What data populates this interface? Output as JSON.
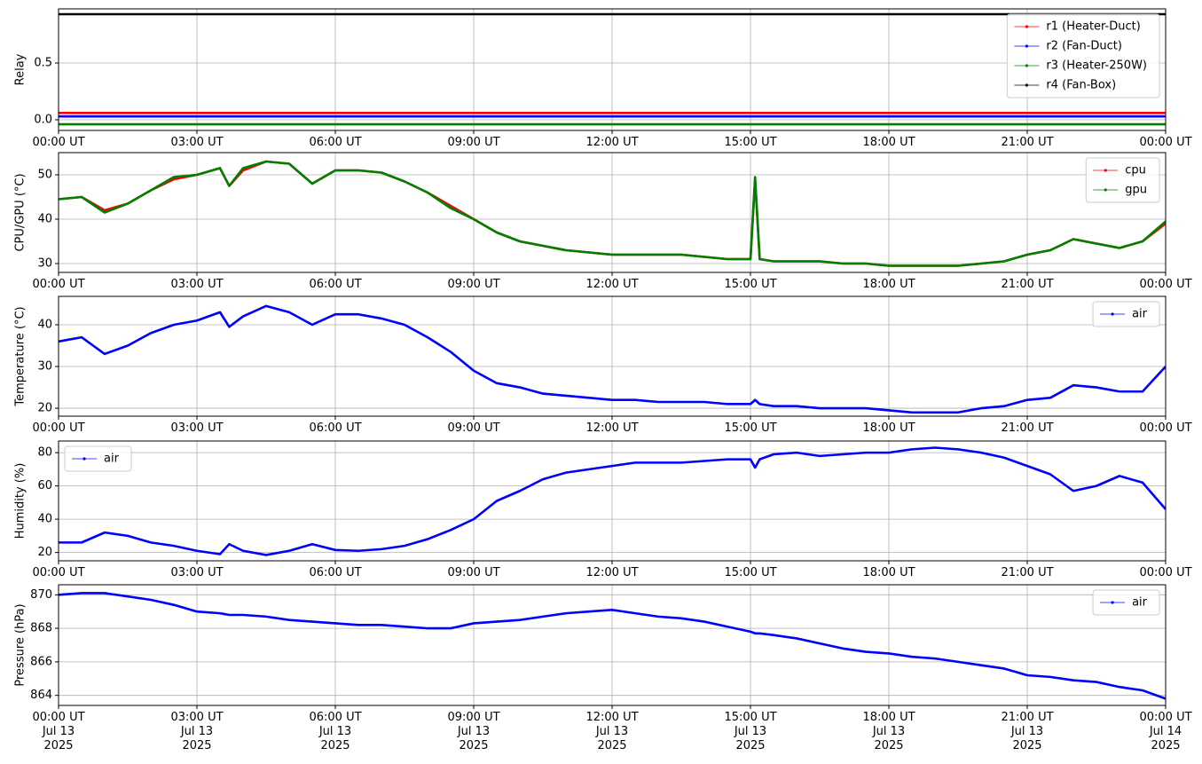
{
  "chart_data": [
    {
      "type": "line",
      "ylabel": "Relay",
      "grid": true,
      "legend": "upper right",
      "xlim": [
        0,
        24
      ],
      "ylim": [
        -0.094,
        0.977
      ],
      "xticks": [
        {
          "value": 0,
          "label": "00:00 UT"
        },
        {
          "value": 3,
          "label": "03:00 UT"
        },
        {
          "value": 6,
          "label": "06:00 UT"
        },
        {
          "value": 9,
          "label": "09:00 UT"
        },
        {
          "value": 12,
          "label": "12:00 UT"
        },
        {
          "value": 15,
          "label": "15:00 UT"
        },
        {
          "value": 18,
          "label": "18:00 UT"
        },
        {
          "value": 21,
          "label": "21:00 UT"
        },
        {
          "value": 24,
          "label": "00:00 UT"
        }
      ],
      "yticks": [
        {
          "value": 0,
          "label": "0.0"
        },
        0.5
      ],
      "x": [
        0,
        24
      ],
      "series": [
        {
          "name": "r1 (Heater-Duct)",
          "color": "#ff0000",
          "values": [
            0.06,
            0.06
          ]
        },
        {
          "name": "r2 (Fan-Duct)",
          "color": "#0000ff",
          "values": [
            0.03,
            0.03
          ]
        },
        {
          "name": "r3 (Heater-250W)",
          "color": "#008000",
          "values": [
            -0.04,
            -0.04
          ]
        },
        {
          "name": "r4 (Fan-Box)",
          "color": "#000000",
          "values": [
            0.93,
            0.93
          ]
        }
      ]
    },
    {
      "type": "line",
      "ylabel": "CPU/GPU (°C)",
      "grid": true,
      "legend": "upper right",
      "xlim": [
        0,
        24
      ],
      "ylim": [
        28,
        55
      ],
      "xticks": [
        {
          "value": 0,
          "label": "00:00 UT"
        },
        {
          "value": 3,
          "label": "03:00 UT"
        },
        {
          "value": 6,
          "label": "06:00 UT"
        },
        {
          "value": 9,
          "label": "09:00 UT"
        },
        {
          "value": 12,
          "label": "12:00 UT"
        },
        {
          "value": 15,
          "label": "15:00 UT"
        },
        {
          "value": 18,
          "label": "18:00 UT"
        },
        {
          "value": 21,
          "label": "21:00 UT"
        },
        {
          "value": 24,
          "label": "00:00 UT"
        }
      ],
      "yticks": [
        30,
        40,
        50
      ],
      "x": [
        0,
        0.5,
        1,
        1.5,
        2,
        2.5,
        3,
        3.5,
        3.7,
        4,
        4.5,
        5,
        5.5,
        6,
        6.5,
        7,
        7.5,
        8,
        8.5,
        9,
        9.5,
        10,
        10.5,
        11,
        11.5,
        12,
        12.5,
        13,
        13.5,
        14,
        14.5,
        15,
        15.1,
        15.2,
        15.5,
        16,
        16.5,
        17,
        17.5,
        18,
        18.5,
        19,
        19.5,
        20,
        20.5,
        21,
        21.5,
        22,
        22.5,
        23,
        23.5,
        24
      ],
      "series": [
        {
          "name": "cpu",
          "color": "#ff0000",
          "values": [
            44.5,
            45,
            42,
            43.5,
            46.5,
            49,
            50,
            51.5,
            47.5,
            51,
            53,
            52.5,
            48,
            51,
            51,
            50.5,
            48.5,
            46,
            43,
            40,
            37,
            35,
            34,
            33,
            32.5,
            32,
            32,
            32,
            32,
            31.5,
            31,
            31,
            49,
            31,
            30.5,
            30.5,
            30.5,
            30,
            30,
            29.5,
            29.5,
            29.5,
            29.5,
            30,
            30.5,
            32,
            33,
            35.5,
            34.5,
            33.5,
            35,
            39
          ]
        },
        {
          "name": "gpu",
          "color": "#008000",
          "values": [
            44.5,
            45,
            41.5,
            43.5,
            46.5,
            49.5,
            50,
            51.5,
            47.5,
            51.5,
            53,
            52.5,
            48,
            51,
            51,
            50.5,
            48.5,
            46,
            42.5,
            40,
            37,
            35,
            34,
            33,
            32.5,
            32,
            32,
            32,
            32,
            31.5,
            31,
            31,
            49.5,
            31,
            30.5,
            30.5,
            30.5,
            30,
            30,
            29.5,
            29.5,
            29.5,
            29.5,
            30,
            30.5,
            32,
            33,
            35.5,
            34.5,
            33.5,
            35,
            39.5
          ]
        }
      ]
    },
    {
      "type": "line",
      "ylabel": "Temperature (°C)",
      "grid": true,
      "legend": "upper right",
      "xlim": [
        0,
        24
      ],
      "ylim": [
        18.1,
        46.8
      ],
      "xticks": [
        {
          "value": 0,
          "label": "00:00 UT"
        },
        {
          "value": 3,
          "label": "03:00 UT"
        },
        {
          "value": 6,
          "label": "06:00 UT"
        },
        {
          "value": 9,
          "label": "09:00 UT"
        },
        {
          "value": 12,
          "label": "12:00 UT"
        },
        {
          "value": 15,
          "label": "15:00 UT"
        },
        {
          "value": 18,
          "label": "18:00 UT"
        },
        {
          "value": 21,
          "label": "21:00 UT"
        },
        {
          "value": 24,
          "label": "00:00 UT"
        }
      ],
      "yticks": [
        20,
        30,
        40
      ],
      "x": [
        0,
        0.5,
        1,
        1.5,
        2,
        2.5,
        3,
        3.5,
        3.7,
        4,
        4.5,
        5,
        5.5,
        6,
        6.5,
        7,
        7.5,
        8,
        8.5,
        9,
        9.5,
        10,
        10.5,
        11,
        11.5,
        12,
        12.5,
        13,
        13.5,
        14,
        14.5,
        15,
        15.1,
        15.2,
        15.5,
        16,
        16.5,
        17,
        17.5,
        18,
        18.5,
        19,
        19.5,
        20,
        20.5,
        21,
        21.5,
        22,
        22.5,
        23,
        23.5,
        24
      ],
      "series": [
        {
          "name": "air",
          "color": "#0000ff",
          "values": [
            36,
            37,
            33,
            35,
            38,
            40,
            41,
            43,
            39.5,
            42,
            44.5,
            43,
            40,
            42.5,
            42.5,
            41.5,
            40,
            37,
            33.5,
            29,
            26,
            25,
            23.5,
            23,
            22.5,
            22,
            22,
            21.5,
            21.5,
            21.5,
            21,
            21,
            22,
            21,
            20.5,
            20.5,
            20,
            20,
            20,
            19.5,
            19,
            19,
            19,
            20,
            20.5,
            22,
            22.5,
            25.5,
            25,
            24,
            24,
            30
          ]
        }
      ]
    },
    {
      "type": "line",
      "ylabel": "Humidity (%)",
      "grid": true,
      "legend": "upper left",
      "xlim": [
        0,
        24
      ],
      "ylim": [
        15,
        87
      ],
      "xticks": [
        {
          "value": 0,
          "label": "00:00 UT"
        },
        {
          "value": 3,
          "label": "03:00 UT"
        },
        {
          "value": 6,
          "label": "06:00 UT"
        },
        {
          "value": 9,
          "label": "09:00 UT"
        },
        {
          "value": 12,
          "label": "12:00 UT"
        },
        {
          "value": 15,
          "label": "15:00 UT"
        },
        {
          "value": 18,
          "label": "18:00 UT"
        },
        {
          "value": 21,
          "label": "21:00 UT"
        },
        {
          "value": 24,
          "label": "00:00 UT"
        }
      ],
      "yticks": [
        20,
        40,
        60,
        80
      ],
      "x": [
        0,
        0.5,
        1,
        1.5,
        2,
        2.5,
        3,
        3.5,
        3.7,
        4,
        4.5,
        5,
        5.5,
        6,
        6.5,
        7,
        7.5,
        8,
        8.5,
        9,
        9.5,
        10,
        10.5,
        11,
        11.5,
        12,
        12.5,
        13,
        13.5,
        14,
        14.5,
        15,
        15.1,
        15.2,
        15.5,
        16,
        16.5,
        17,
        17.5,
        18,
        18.5,
        19,
        19.5,
        20,
        20.5,
        21,
        21.5,
        22,
        22.5,
        23,
        23.5,
        24
      ],
      "series": [
        {
          "name": "air",
          "color": "#0000ff",
          "values": [
            26,
            26,
            32,
            30,
            26,
            24,
            21,
            19,
            25,
            21,
            18.5,
            21,
            25,
            21.5,
            21,
            22,
            24,
            28,
            33.5,
            40,
            51,
            57,
            64,
            68,
            70,
            72,
            74,
            74,
            74,
            75,
            76,
            76,
            71,
            76,
            79,
            80,
            78,
            79,
            80,
            80,
            82,
            83,
            82,
            80,
            77,
            72,
            67,
            57,
            60,
            66,
            62,
            46
          ]
        }
      ]
    },
    {
      "type": "line",
      "ylabel": "Pressure (hPa)",
      "grid": true,
      "legend": "upper right",
      "xlim": [
        0,
        24
      ],
      "ylim": [
        863.4,
        870.6
      ],
      "xticks": [
        {
          "value": 0,
          "label": "00:00 UT\nJul 13\n2025"
        },
        {
          "value": 3,
          "label": "03:00 UT\nJul 13\n2025"
        },
        {
          "value": 6,
          "label": "06:00 UT\nJul 13\n2025"
        },
        {
          "value": 9,
          "label": "09:00 UT\nJul 13\n2025"
        },
        {
          "value": 12,
          "label": "12:00 UT\nJul 13\n2025"
        },
        {
          "value": 15,
          "label": "15:00 UT\nJul 13\n2025"
        },
        {
          "value": 18,
          "label": "18:00 UT\nJul 13\n2025"
        },
        {
          "value": 21,
          "label": "21:00 UT\nJul 13\n2025"
        },
        {
          "value": 24,
          "label": "00:00 UT\nJul 14\n2025"
        }
      ],
      "yticks": [
        864,
        866,
        868,
        870
      ],
      "x": [
        0,
        0.5,
        1,
        1.5,
        2,
        2.5,
        3,
        3.5,
        3.7,
        4,
        4.5,
        5,
        5.5,
        6,
        6.5,
        7,
        7.5,
        8,
        8.5,
        9,
        9.5,
        10,
        10.5,
        11,
        11.5,
        12,
        12.5,
        13,
        13.5,
        14,
        14.5,
        15,
        15.1,
        15.2,
        15.5,
        16,
        16.5,
        17,
        17.5,
        18,
        18.5,
        19,
        19.5,
        20,
        20.5,
        21,
        21.5,
        22,
        22.5,
        23,
        23.5,
        24
      ],
      "series": [
        {
          "name": "air",
          "color": "#0000ff",
          "values": [
            870,
            870.1,
            870.1,
            869.9,
            869.7,
            869.4,
            869,
            868.9,
            868.8,
            868.8,
            868.7,
            868.5,
            868.4,
            868.3,
            868.2,
            868.2,
            868.1,
            868,
            868,
            868.3,
            868.4,
            868.5,
            868.7,
            868.9,
            869,
            869.1,
            868.9,
            868.7,
            868.6,
            868.4,
            868.1,
            867.8,
            867.7,
            867.7,
            867.6,
            867.4,
            867.1,
            866.8,
            866.6,
            866.5,
            866.3,
            866.2,
            866,
            865.8,
            865.6,
            865.2,
            865.1,
            864.9,
            864.8,
            864.5,
            864.3,
            863.8
          ]
        }
      ]
    }
  ]
}
